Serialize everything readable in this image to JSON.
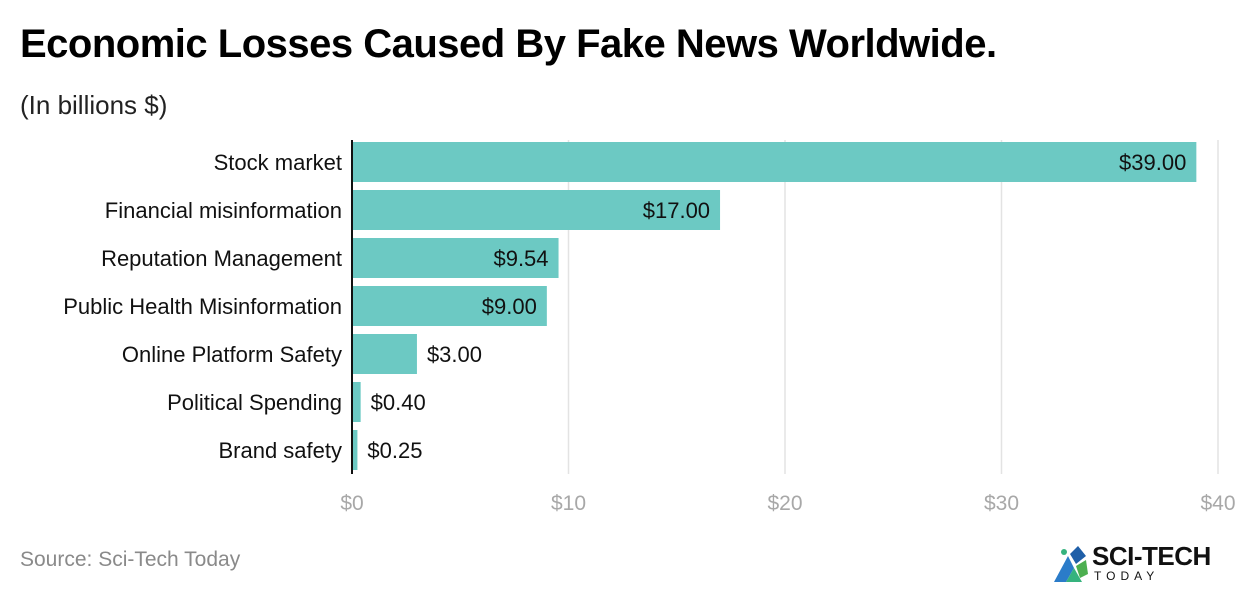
{
  "title": "Economic Losses Caused By Fake News Worldwide.",
  "subtitle": "(In billions $)",
  "source": "Source: Sci-Tech Today",
  "logo": {
    "name": "SCI-TECH",
    "sub": "TODAY",
    "icon": "sci-tech-logo-icon"
  },
  "colors": {
    "bar": "#6cc9c3",
    "grid": "#e3e3e3",
    "axis": "#111111",
    "tick": "#a8a8a8",
    "text": "#111111"
  },
  "chart_data": {
    "type": "bar",
    "orientation": "horizontal",
    "categories": [
      "Stock market",
      "Financial misinformation",
      "Reputation Management",
      "Public Health Misinformation",
      "Online Platform Safety",
      "Political Spending",
      "Brand safety"
    ],
    "values": [
      39.0,
      17.0,
      9.54,
      9.0,
      3.0,
      0.4,
      0.25
    ],
    "value_labels": [
      "$39.00",
      "$17.00",
      "$9.54",
      "$9.00",
      "$3.00",
      "$0.40",
      "$0.25"
    ],
    "xlim": [
      0,
      40
    ],
    "xticks": [
      0,
      10,
      20,
      30,
      40
    ],
    "xtick_labels": [
      "$0",
      "$10",
      "$20",
      "$30",
      "$40"
    ],
    "grid": true,
    "legend": "none"
  }
}
